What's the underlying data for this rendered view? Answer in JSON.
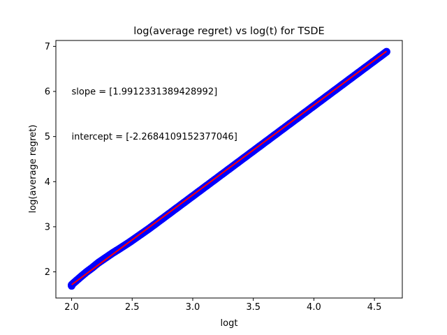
{
  "chart_data": {
    "type": "scatter",
    "title": "log(average regret) vs log(t) for TSDE",
    "xlabel": "logt",
    "ylabel": "log(average regret)",
    "xlim": [
      1.87,
      4.73
    ],
    "ylim": [
      1.42,
      7.13
    ],
    "xticks": [
      2.0,
      2.5,
      3.0,
      3.5,
      4.0,
      4.5
    ],
    "xtick_labels": [
      "2.0",
      "2.5",
      "3.0",
      "3.5",
      "4.0",
      "4.5"
    ],
    "yticks": [
      2,
      3,
      4,
      5,
      6,
      7
    ],
    "ytick_labels": [
      "2",
      "3",
      "4",
      "5",
      "6",
      "7"
    ],
    "grid": false,
    "annotations": [
      {
        "text": "slope = [1.9912331389428992]",
        "x": 2.0,
        "y": 6.0
      },
      {
        "text": "intercept = [-2.2684109152377046]",
        "x": 2.0,
        "y": 5.0
      }
    ],
    "series": [
      {
        "kind": "scatter",
        "color": "#0000ff",
        "x": [
          2.0,
          2.0,
          2.02,
          2.05,
          2.08,
          2.12,
          2.17,
          2.22,
          2.28,
          2.34,
          2.4,
          2.48,
          2.56,
          2.64,
          2.72,
          2.8,
          2.9,
          3.0,
          3.1,
          3.2,
          3.3,
          3.4,
          3.5,
          3.6,
          3.7,
          3.8,
          3.9,
          4.0,
          4.1,
          4.2,
          4.3,
          4.4,
          4.5,
          4.56,
          4.6
        ],
        "y": [
          1.69,
          1.71,
          1.76,
          1.83,
          1.9,
          1.99,
          2.09,
          2.2,
          2.31,
          2.42,
          2.52,
          2.66,
          2.81,
          2.96,
          3.12,
          3.28,
          3.48,
          3.68,
          3.88,
          4.08,
          4.28,
          4.48,
          4.68,
          4.88,
          5.08,
          5.28,
          5.48,
          5.68,
          5.88,
          6.08,
          6.28,
          6.48,
          6.68,
          6.8,
          6.88
        ]
      },
      {
        "kind": "line",
        "color": "#ff0000",
        "x": [
          2.0,
          4.6
        ],
        "y": [
          1.714,
          6.891
        ]
      }
    ]
  }
}
